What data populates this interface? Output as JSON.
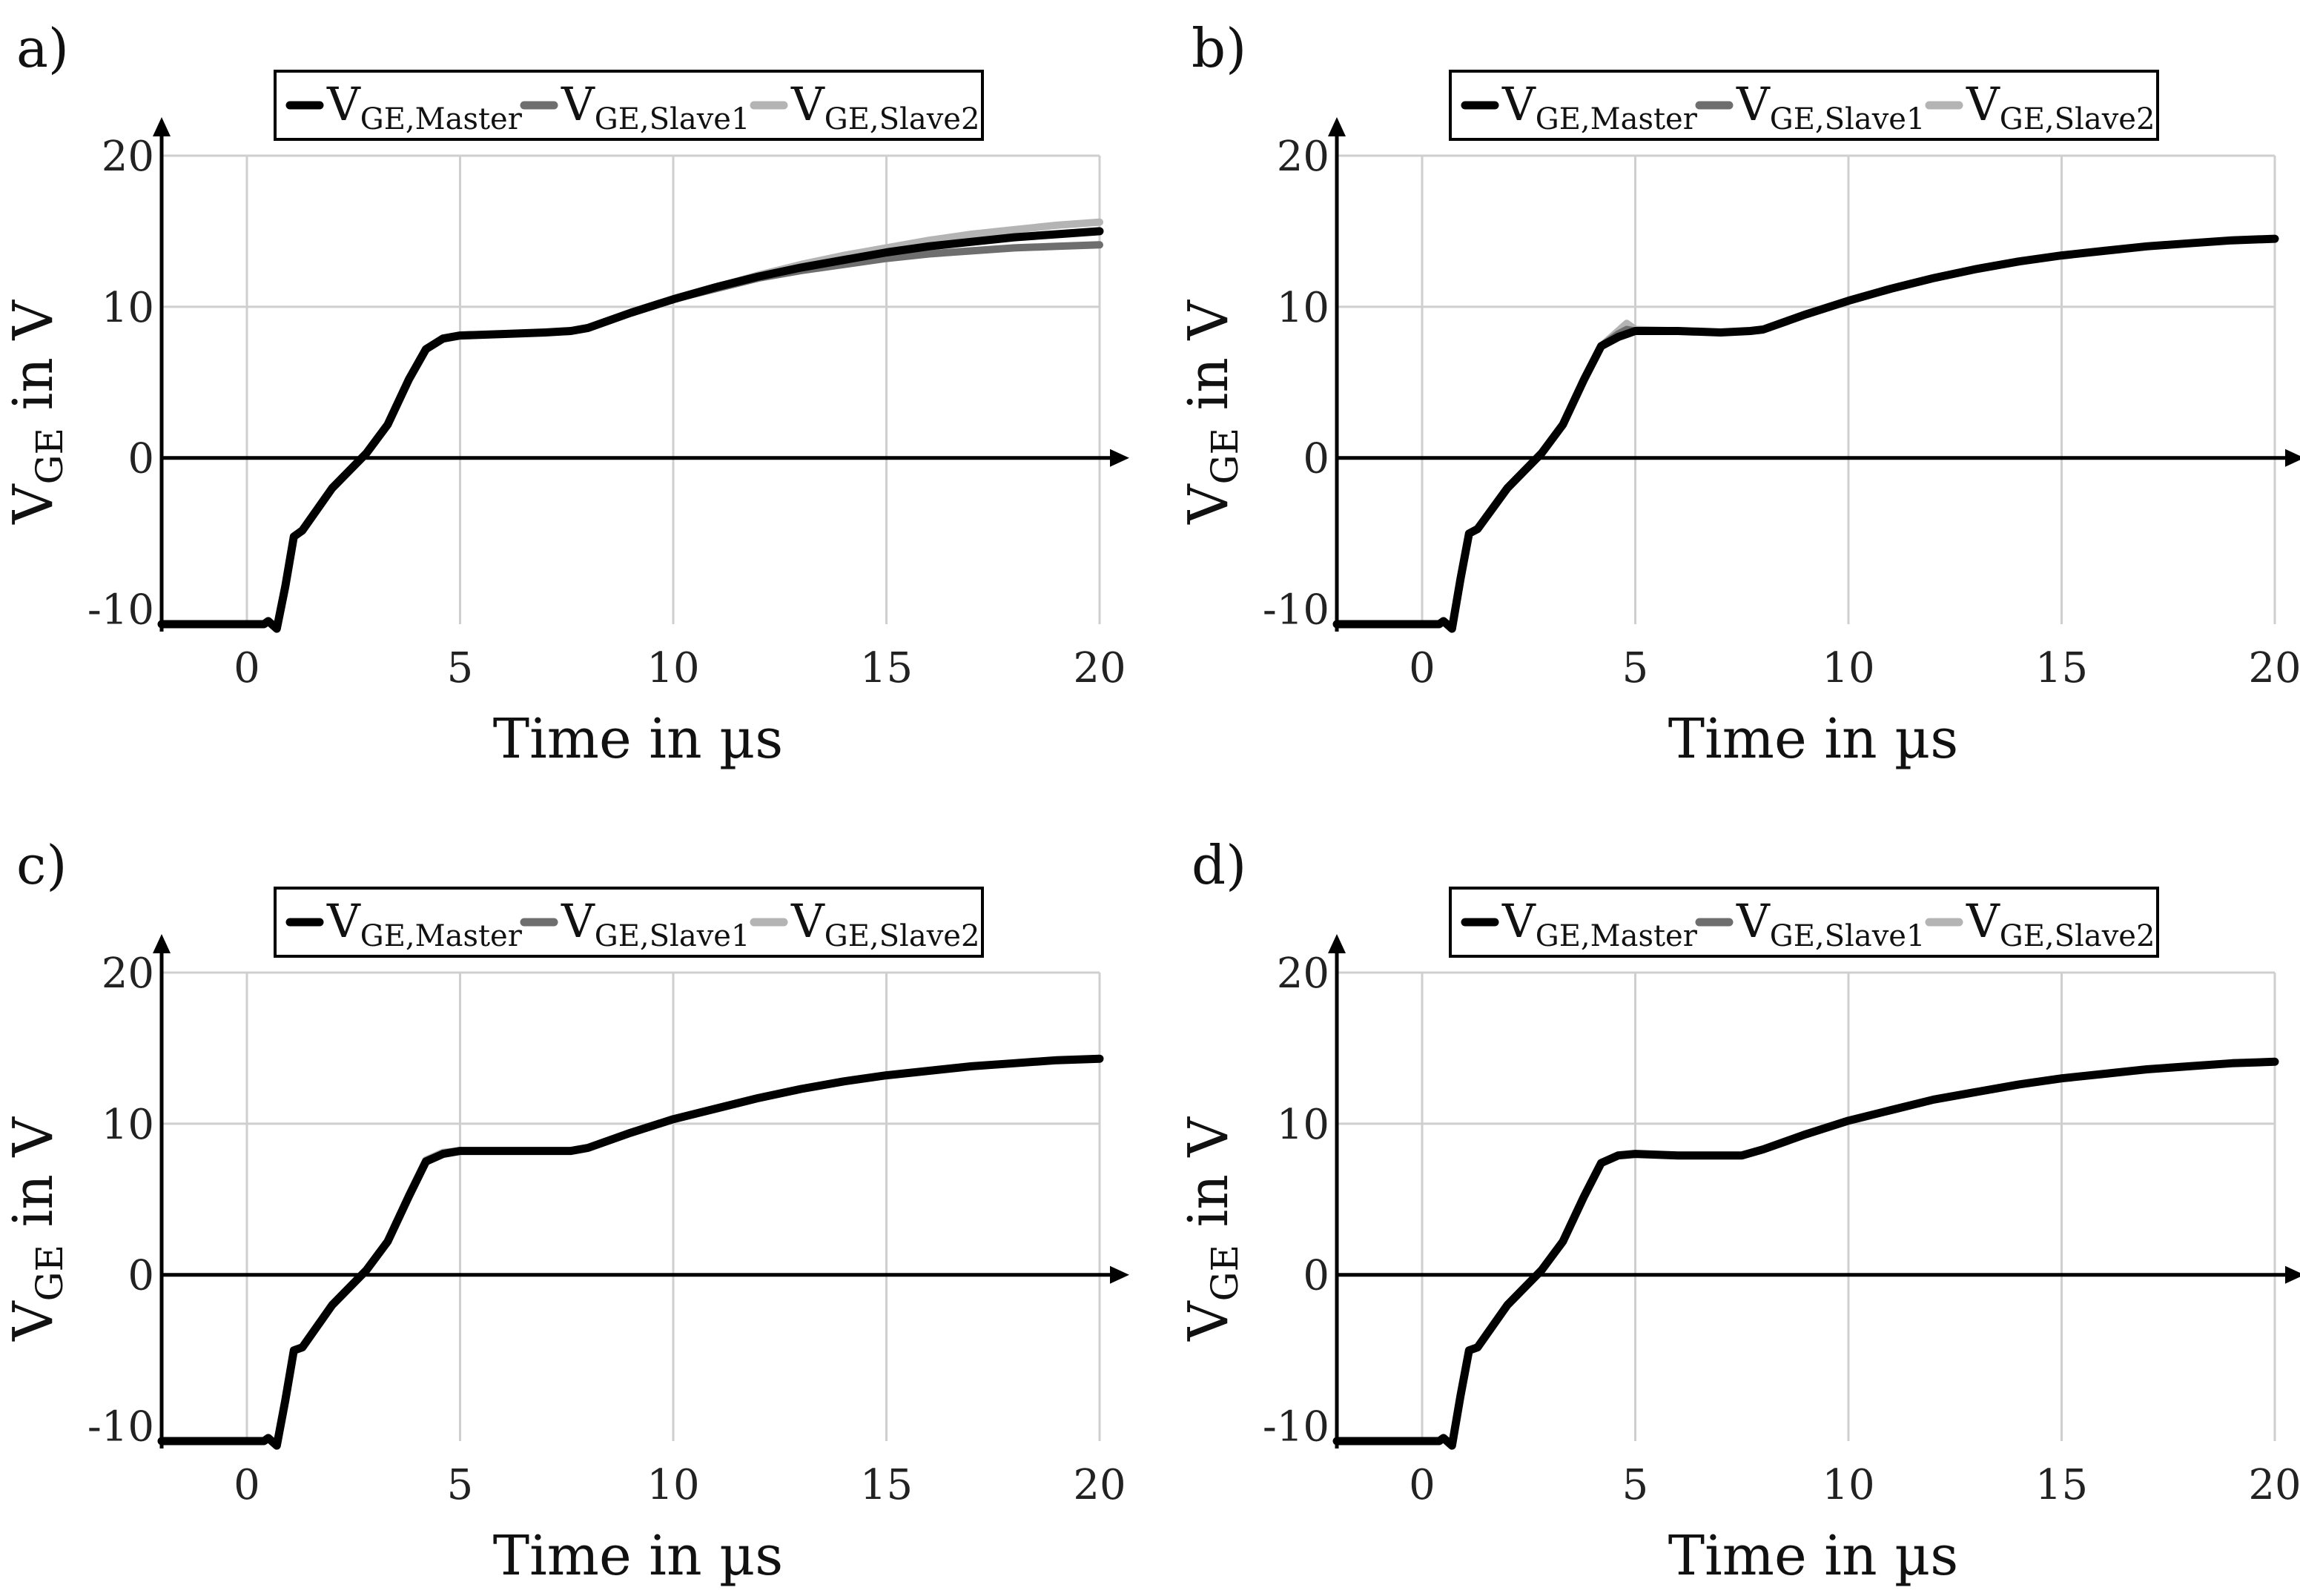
{
  "figure": {
    "panels": [
      {
        "label": "a)"
      },
      {
        "label": "b)"
      },
      {
        "label": "c)"
      },
      {
        "label": "d)"
      }
    ]
  },
  "legend": {
    "entries": [
      {
        "main": "V",
        "sub": "GE,Master",
        "color": "#000000"
      },
      {
        "main": "V",
        "sub": "GE,Slave1",
        "color": "#6e6e6e"
      },
      {
        "main": "V",
        "sub": "GE,Slave2",
        "color": "#b4b4b4"
      }
    ]
  },
  "chart_data": [
    {
      "type": "line",
      "panel": "a)",
      "xlabel": "Time in µs",
      "ylabel_main": "V",
      "ylabel_sub": "GE",
      "ylabel_rest": " in V",
      "xlim": [
        -2,
        20
      ],
      "ylim": [
        -11,
        20
      ],
      "xticks": [
        0,
        5,
        10,
        15,
        20
      ],
      "yticks": [
        -10,
        0,
        10,
        20
      ],
      "series": [
        {
          "name": "VGE,Slave2",
          "color": "#b4b4b4",
          "x": [
            -2,
            0.4,
            0.5,
            0.7,
            0.9,
            1.1,
            1.3,
            2.0,
            2.8,
            3.3,
            3.8,
            4.2,
            4.6,
            5.0,
            6.0,
            7.0,
            7.6,
            8.0,
            9.0,
            10.0,
            11.0,
            12.0,
            13.0,
            14.0,
            15.0,
            16.0,
            17.0,
            18.0,
            19.0,
            20.0
          ],
          "y": [
            -11,
            -11,
            -10.8,
            -11.3,
            -8.5,
            -5.2,
            -4.8,
            -2.0,
            0.3,
            2.2,
            5.2,
            7.2,
            7.9,
            8.1,
            8.2,
            8.3,
            8.4,
            8.6,
            9.6,
            10.5,
            11.3,
            12.1,
            12.8,
            13.4,
            13.9,
            14.4,
            14.8,
            15.1,
            15.4,
            15.6
          ]
        },
        {
          "name": "VGE,Slave1",
          "color": "#6e6e6e",
          "x": [
            -2,
            0.4,
            0.5,
            0.7,
            0.9,
            1.1,
            1.3,
            2.0,
            2.8,
            3.3,
            3.8,
            4.2,
            4.6,
            5.0,
            6.0,
            7.0,
            7.6,
            8.0,
            9.0,
            10.0,
            11.0,
            12.0,
            13.0,
            14.0,
            15.0,
            16.0,
            17.0,
            18.0,
            19.0,
            20.0
          ],
          "y": [
            -11,
            -11,
            -10.8,
            -11.3,
            -8.5,
            -5.2,
            -4.8,
            -2.0,
            0.3,
            2.2,
            5.2,
            7.2,
            7.9,
            8.1,
            8.2,
            8.3,
            8.4,
            8.6,
            9.6,
            10.5,
            11.2,
            11.9,
            12.4,
            12.8,
            13.2,
            13.5,
            13.7,
            13.9,
            14.0,
            14.1
          ]
        },
        {
          "name": "VGE,Master",
          "color": "#000000",
          "x": [
            -2,
            0.4,
            0.5,
            0.7,
            0.9,
            1.1,
            1.3,
            2.0,
            2.8,
            3.3,
            3.8,
            4.2,
            4.6,
            5.0,
            6.0,
            7.0,
            7.6,
            8.0,
            9.0,
            10.0,
            11.0,
            12.0,
            13.0,
            14.0,
            15.0,
            16.0,
            17.0,
            18.0,
            19.0,
            20.0
          ],
          "y": [
            -11,
            -11,
            -10.8,
            -11.3,
            -8.5,
            -5.2,
            -4.8,
            -2.0,
            0.3,
            2.2,
            5.2,
            7.2,
            7.9,
            8.1,
            8.2,
            8.3,
            8.4,
            8.6,
            9.6,
            10.5,
            11.3,
            12.0,
            12.6,
            13.1,
            13.6,
            14.0,
            14.3,
            14.6,
            14.8,
            15.0
          ]
        }
      ]
    },
    {
      "type": "line",
      "panel": "b)",
      "xlabel": "Time in µs",
      "ylabel_main": "V",
      "ylabel_sub": "GE",
      "ylabel_rest": " in V",
      "xlim": [
        -2,
        20
      ],
      "ylim": [
        -11,
        20
      ],
      "xticks": [
        0,
        5,
        10,
        15,
        20
      ],
      "yticks": [
        -10,
        0,
        10,
        20
      ],
      "series": [
        {
          "name": "VGE,Slave2",
          "color": "#b4b4b4",
          "x": [
            -2,
            0.4,
            0.5,
            0.7,
            0.9,
            1.1,
            1.3,
            2.0,
            2.8,
            3.3,
            3.8,
            4.2,
            4.6,
            4.8,
            5.0,
            6.0,
            7.0,
            7.7,
            8.0,
            9.0,
            10.0,
            11.0,
            12.0,
            13.0,
            14.0,
            15.0,
            16.0,
            17.0,
            18.0,
            19.0,
            20.0
          ],
          "y": [
            -11,
            -11,
            -10.8,
            -11.3,
            -8.0,
            -5.0,
            -4.7,
            -2.0,
            0.3,
            2.2,
            5.2,
            7.4,
            8.4,
            8.9,
            8.5,
            8.4,
            8.3,
            8.4,
            8.5,
            9.5,
            10.4,
            11.2,
            11.9,
            12.5,
            13.0,
            13.4,
            13.7,
            14.0,
            14.2,
            14.4,
            14.5
          ]
        },
        {
          "name": "VGE,Slave1",
          "color": "#6e6e6e",
          "x": [
            -2,
            0.4,
            0.5,
            0.7,
            0.9,
            1.1,
            1.3,
            2.0,
            2.8,
            3.3,
            3.8,
            4.2,
            4.6,
            4.8,
            5.0,
            6.0,
            7.0,
            7.7,
            8.0,
            9.0,
            10.0,
            11.0,
            12.0,
            13.0,
            14.0,
            15.0,
            16.0,
            17.0,
            18.0,
            19.0,
            20.0
          ],
          "y": [
            -11,
            -11,
            -10.8,
            -11.3,
            -8.0,
            -5.0,
            -4.7,
            -2.0,
            0.3,
            2.2,
            5.2,
            7.4,
            8.2,
            8.5,
            8.4,
            8.4,
            8.3,
            8.4,
            8.5,
            9.5,
            10.4,
            11.2,
            11.9,
            12.5,
            13.0,
            13.4,
            13.7,
            14.0,
            14.2,
            14.4,
            14.5
          ]
        },
        {
          "name": "VGE,Master",
          "color": "#000000",
          "x": [
            -2,
            0.4,
            0.5,
            0.7,
            0.9,
            1.1,
            1.3,
            2.0,
            2.8,
            3.3,
            3.8,
            4.2,
            4.6,
            4.8,
            5.0,
            6.0,
            7.0,
            7.7,
            8.0,
            9.0,
            10.0,
            11.0,
            12.0,
            13.0,
            14.0,
            15.0,
            16.0,
            17.0,
            18.0,
            19.0,
            20.0
          ],
          "y": [
            -11,
            -11,
            -10.8,
            -11.3,
            -8.0,
            -5.0,
            -4.7,
            -2.0,
            0.3,
            2.2,
            5.2,
            7.4,
            8.0,
            8.2,
            8.4,
            8.4,
            8.3,
            8.4,
            8.5,
            9.5,
            10.4,
            11.2,
            11.9,
            12.5,
            13.0,
            13.4,
            13.7,
            14.0,
            14.2,
            14.4,
            14.5
          ]
        }
      ]
    },
    {
      "type": "line",
      "panel": "c)",
      "xlabel": "Time in µs",
      "ylabel_main": "V",
      "ylabel_sub": "GE",
      "ylabel_rest": " in V",
      "xlim": [
        -2,
        20
      ],
      "ylim": [
        -11,
        20
      ],
      "xticks": [
        0,
        5,
        10,
        15,
        20
      ],
      "yticks": [
        -10,
        0,
        10,
        20
      ],
      "series": [
        {
          "name": "VGE,Slave2",
          "color": "#b4b4b4",
          "x": [
            -2,
            0.4,
            0.5,
            0.7,
            0.9,
            1.1,
            1.3,
            2.0,
            2.8,
            3.3,
            3.8,
            4.2,
            4.6,
            5.0,
            6.0,
            7.0,
            7.6,
            8.0,
            9.0,
            10.0,
            11.0,
            12.0,
            13.0,
            14.0,
            15.0,
            16.0,
            17.0,
            18.0,
            19.0,
            20.0
          ],
          "y": [
            -11,
            -11,
            -10.8,
            -11.3,
            -8.3,
            -5.0,
            -4.8,
            -2.0,
            0.3,
            2.2,
            5.3,
            7.6,
            8.1,
            8.2,
            8.2,
            8.2,
            8.2,
            8.4,
            9.4,
            10.3,
            11.0,
            11.7,
            12.3,
            12.8,
            13.2,
            13.5,
            13.8,
            14.0,
            14.2,
            14.3
          ]
        },
        {
          "name": "VGE,Slave1",
          "color": "#6e6e6e",
          "x": [
            -2,
            0.4,
            0.5,
            0.7,
            0.9,
            1.1,
            1.3,
            2.0,
            2.8,
            3.3,
            3.8,
            4.2,
            4.6,
            5.0,
            6.0,
            7.0,
            7.6,
            8.0,
            9.0,
            10.0,
            11.0,
            12.0,
            13.0,
            14.0,
            15.0,
            16.0,
            17.0,
            18.0,
            19.0,
            20.0
          ],
          "y": [
            -11,
            -11,
            -10.8,
            -11.3,
            -8.3,
            -5.0,
            -4.8,
            -2.0,
            0.3,
            2.2,
            5.2,
            7.5,
            8.0,
            8.2,
            8.2,
            8.2,
            8.2,
            8.4,
            9.4,
            10.3,
            11.0,
            11.7,
            12.3,
            12.8,
            13.2,
            13.5,
            13.8,
            14.0,
            14.2,
            14.3
          ]
        },
        {
          "name": "VGE,Master",
          "color": "#000000",
          "x": [
            -2,
            0.4,
            0.5,
            0.7,
            0.9,
            1.1,
            1.3,
            2.0,
            2.8,
            3.3,
            3.8,
            4.2,
            4.6,
            5.0,
            6.0,
            7.0,
            7.6,
            8.0,
            9.0,
            10.0,
            11.0,
            12.0,
            13.0,
            14.0,
            15.0,
            16.0,
            17.0,
            18.0,
            19.0,
            20.0
          ],
          "y": [
            -11,
            -11,
            -10.8,
            -11.3,
            -8.3,
            -5.0,
            -4.8,
            -2.0,
            0.3,
            2.2,
            5.2,
            7.5,
            8.0,
            8.2,
            8.2,
            8.2,
            8.2,
            8.4,
            9.4,
            10.3,
            11.0,
            11.7,
            12.3,
            12.8,
            13.2,
            13.5,
            13.8,
            14.0,
            14.2,
            14.3
          ]
        }
      ]
    },
    {
      "type": "line",
      "panel": "d)",
      "xlabel": "Time in µs",
      "ylabel_main": "V",
      "ylabel_sub": "GE",
      "ylabel_rest": " in V",
      "xlim": [
        -2,
        20
      ],
      "ylim": [
        -11,
        20
      ],
      "xticks": [
        0,
        5,
        10,
        15,
        20
      ],
      "yticks": [
        -10,
        0,
        10,
        20
      ],
      "series": [
        {
          "name": "VGE,Slave2",
          "color": "#b4b4b4",
          "x": [
            -2,
            0.4,
            0.5,
            0.7,
            0.9,
            1.1,
            1.3,
            2.0,
            2.8,
            3.3,
            3.8,
            4.2,
            4.6,
            5.0,
            6.0,
            7.0,
            7.5,
            8.0,
            9.0,
            10.0,
            11.0,
            12.0,
            13.0,
            14.0,
            15.0,
            16.0,
            17.0,
            18.0,
            19.0,
            20.0
          ],
          "y": [
            -11,
            -11,
            -10.8,
            -11.3,
            -8.0,
            -5.0,
            -4.8,
            -2.0,
            0.3,
            2.2,
            5.2,
            7.4,
            7.9,
            8.0,
            7.9,
            7.9,
            7.9,
            8.3,
            9.3,
            10.2,
            10.9,
            11.6,
            12.1,
            12.6,
            13.0,
            13.3,
            13.6,
            13.8,
            14.0,
            14.1
          ]
        },
        {
          "name": "VGE,Slave1",
          "color": "#6e6e6e",
          "x": [
            -2,
            0.4,
            0.5,
            0.7,
            0.9,
            1.1,
            1.3,
            2.0,
            2.8,
            3.3,
            3.8,
            4.2,
            4.6,
            5.0,
            6.0,
            7.0,
            7.5,
            8.0,
            9.0,
            10.0,
            11.0,
            12.0,
            13.0,
            14.0,
            15.0,
            16.0,
            17.0,
            18.0,
            19.0,
            20.0
          ],
          "y": [
            -11,
            -11,
            -10.8,
            -11.3,
            -8.0,
            -5.0,
            -4.8,
            -2.0,
            0.3,
            2.2,
            5.2,
            7.4,
            7.9,
            8.0,
            7.9,
            7.9,
            7.9,
            8.3,
            9.3,
            10.2,
            10.9,
            11.6,
            12.1,
            12.6,
            13.0,
            13.3,
            13.6,
            13.8,
            14.0,
            14.1
          ]
        },
        {
          "name": "VGE,Master",
          "color": "#000000",
          "x": [
            -2,
            0.4,
            0.5,
            0.7,
            0.9,
            1.1,
            1.3,
            2.0,
            2.8,
            3.3,
            3.8,
            4.2,
            4.6,
            5.0,
            6.0,
            7.0,
            7.5,
            8.0,
            9.0,
            10.0,
            11.0,
            12.0,
            13.0,
            14.0,
            15.0,
            16.0,
            17.0,
            18.0,
            19.0,
            20.0
          ],
          "y": [
            -11,
            -11,
            -10.8,
            -11.3,
            -8.0,
            -5.0,
            -4.8,
            -2.0,
            0.3,
            2.2,
            5.2,
            7.4,
            7.9,
            8.0,
            7.9,
            7.9,
            7.9,
            8.3,
            9.3,
            10.2,
            10.9,
            11.6,
            12.1,
            12.6,
            13.0,
            13.3,
            13.6,
            13.8,
            14.0,
            14.1
          ]
        }
      ]
    }
  ]
}
